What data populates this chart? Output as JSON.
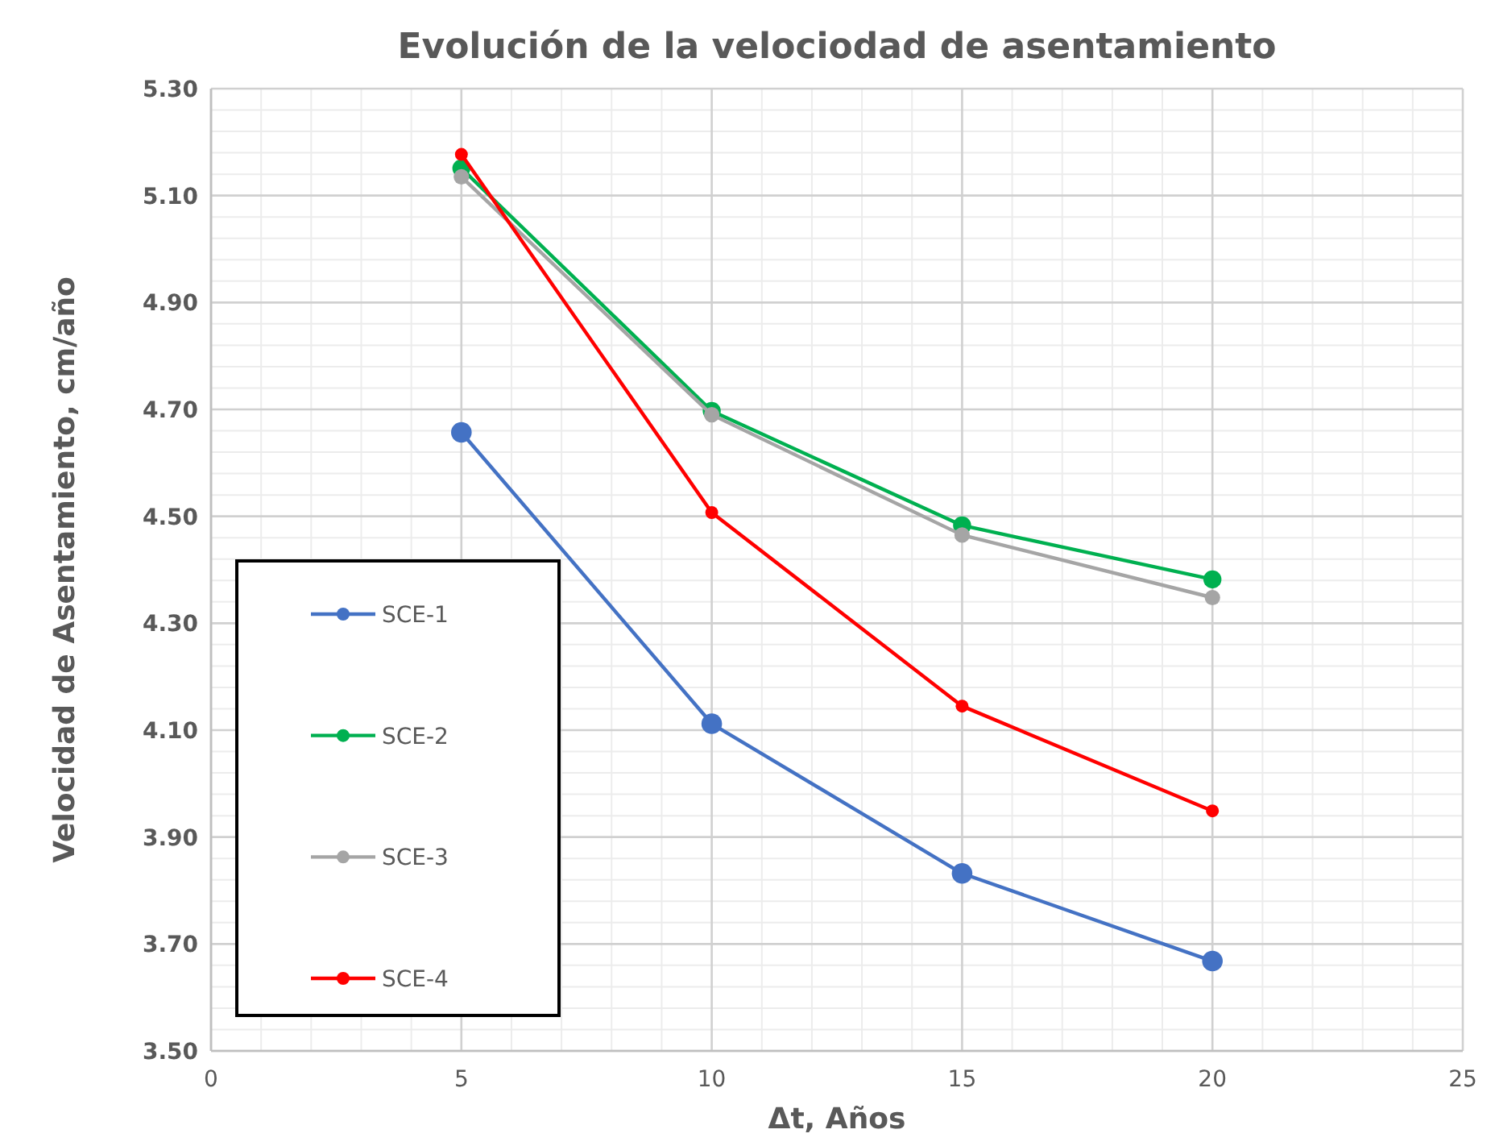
{
  "chart_data": {
    "type": "line",
    "title": "Evolución de la velociodad de asentamiento",
    "xlabel": "Δt, Años",
    "ylabel": "Velocidad de Asentamiento,  cm/año",
    "x": [
      5,
      10,
      15,
      20
    ],
    "series": [
      {
        "name": "SCE-1",
        "color": "#4472c4",
        "values": [
          4.657,
          4.112,
          3.832,
          3.668
        ]
      },
      {
        "name": "SCE-2",
        "color": "#00b050",
        "values": [
          5.151,
          4.697,
          4.483,
          4.382
        ]
      },
      {
        "name": "SCE-3",
        "color": "#a5a5a5",
        "values": [
          5.135,
          4.69,
          4.465,
          4.348
        ]
      },
      {
        "name": "SCE-4",
        "color": "#ff0000",
        "values": [
          5.177,
          4.507,
          4.145,
          3.949
        ]
      }
    ],
    "xlim": [
      0,
      25
    ],
    "xticks": [
      0,
      5,
      10,
      15,
      20,
      25
    ],
    "ylim": [
      3.5,
      5.3
    ],
    "yticks": [
      {
        "value": 3.5,
        "label": "3.50"
      },
      {
        "value": 3.7,
        "label": "3.70"
      },
      {
        "value": 3.9,
        "label": "3.90"
      },
      {
        "value": 4.1,
        "label": "4.10"
      },
      {
        "value": 4.3,
        "label": "4.30"
      },
      {
        "value": 4.5,
        "label": "4.50"
      },
      {
        "value": 4.7,
        "label": "4.70"
      },
      {
        "value": 4.9,
        "label": "4.90"
      },
      {
        "value": 5.1,
        "label": "5.10"
      },
      {
        "value": 5.3,
        "label": "5.30"
      }
    ],
    "grid": true,
    "legend": "bottom left",
    "marker": "circle",
    "line_style": "solid"
  }
}
